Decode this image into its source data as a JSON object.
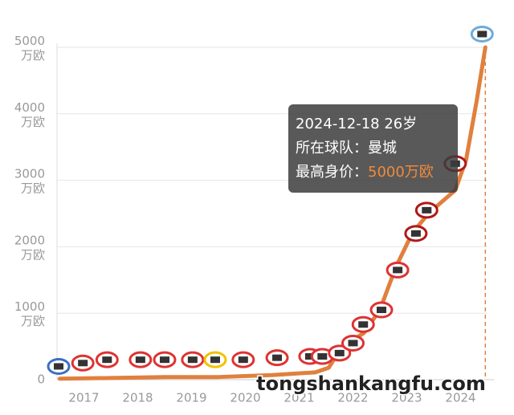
{
  "chart_data": {
    "type": "line",
    "xlim": [
      2017,
      2025
    ],
    "xticks": [
      {
        "value": 2017.5,
        "label": "2017"
      },
      {
        "value": 2018.5,
        "label": "2018"
      },
      {
        "value": 2019.5,
        "label": "2019"
      },
      {
        "value": 2020.5,
        "label": "2020"
      },
      {
        "value": 2021.5,
        "label": "2021"
      },
      {
        "value": 2022.5,
        "label": "2022"
      },
      {
        "value": 2023.5,
        "label": "2023"
      },
      {
        "value": 2024.5,
        "label": "2024"
      }
    ],
    "ylim": [
      0,
      5000
    ],
    "yticks": [
      0,
      {
        "value": 1000,
        "label": "1000 万欧"
      },
      {
        "value": 2000,
        "label": "2000 万欧"
      },
      {
        "value": 3000,
        "label": "3000 万欧"
      },
      {
        "value": 4000,
        "label": "4000 万欧"
      },
      {
        "value": 5000,
        "label": "5000 万欧"
      }
    ],
    "grid": true,
    "series": [
      {
        "color": "#e0803e",
        "x": [
          2017.05,
          2018,
          2019,
          2020,
          2021,
          2021.8,
          2022.05,
          2022.3,
          2022.7,
          2023.0,
          2023.3,
          2023.6,
          2023.9,
          2024.4,
          2024.6,
          2024.8,
          2024.96
        ],
        "values": [
          15,
          25,
          40,
          40,
          70,
          110,
          180,
          500,
          700,
          1050,
          1700,
          2200,
          2500,
          2850,
          3300,
          4200,
          5000
        ]
      },
      {
        "markers": true,
        "x": [
          2017.03,
          2017.48,
          2017.93,
          2018.55,
          2019.0,
          2019.52,
          2019.94,
          2020.46,
          2021.09,
          2021.7,
          2021.93,
          2022.25,
          2022.5,
          2022.69,
          2023.03,
          2023.33,
          2023.67,
          2023.87,
          2024.4,
          2024.9
        ],
        "values": [
          200,
          250,
          300,
          300,
          300,
          300,
          300,
          300,
          330,
          350,
          350,
          400,
          550,
          830,
          1050,
          1650,
          2200,
          2550,
          3250,
          5200
        ],
        "colors": [
          "#3a6fc4",
          "#d33",
          "#d33",
          "#d33",
          "#d33",
          "#d33",
          "#f2c200",
          "#d33",
          "#d33",
          "#d33",
          "#d33",
          "#d33",
          "#d33",
          "#d33",
          "#d33",
          "#d33",
          "#b01818",
          "#b01818",
          "#b01818",
          "#6cabdd"
        ]
      }
    ],
    "tooltip": {
      "line1": "2024-12-18 26岁",
      "line2": "所在球队：曼城",
      "line3": "最高身价：",
      "value": "5000万欧"
    },
    "watermark": "tongshankangfu.com"
  }
}
